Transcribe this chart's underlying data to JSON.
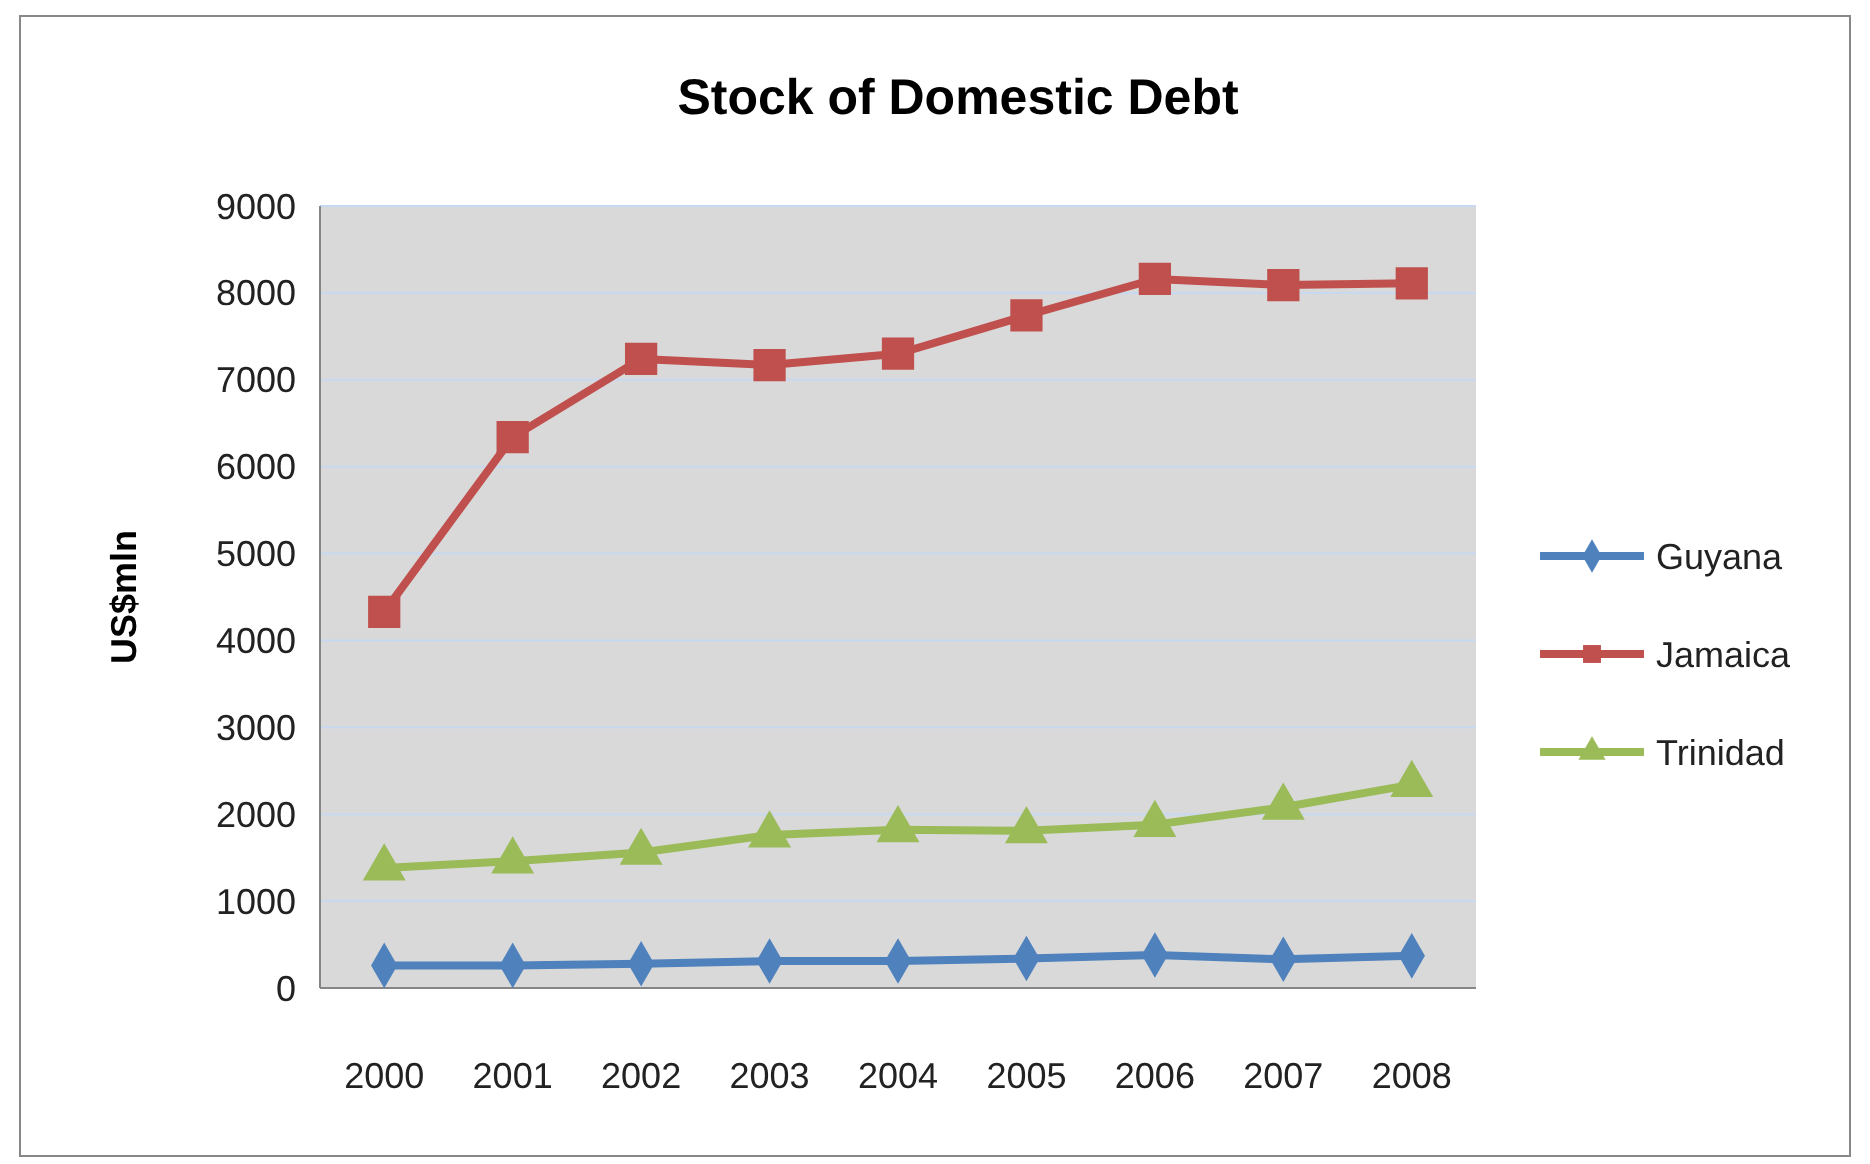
{
  "chart_data": {
    "type": "line",
    "title": "Stock of Domestic Debt",
    "ylabel": "US$mln",
    "categories": [
      "2000",
      "2001",
      "2002",
      "2003",
      "2004",
      "2005",
      "2006",
      "2007",
      "2008"
    ],
    "series": [
      {
        "name": "Guyana",
        "color": "#4f81bd",
        "marker": "diamond",
        "values": [
          260,
          260,
          280,
          310,
          310,
          340,
          380,
          330,
          370
        ]
      },
      {
        "name": "Jamaica",
        "color": "#c0504d",
        "marker": "square",
        "values": [
          4330,
          6340,
          7240,
          7170,
          7300,
          7740,
          8160,
          8090,
          8110
        ]
      },
      {
        "name": "Trinidad",
        "color": "#9bbb59",
        "marker": "triangle",
        "values": [
          1380,
          1460,
          1560,
          1760,
          1820,
          1810,
          1880,
          2080,
          2340
        ]
      }
    ],
    "ylim": [
      0,
      9000
    ],
    "yticks": [
      0,
      1000,
      2000,
      3000,
      4000,
      5000,
      6000,
      7000,
      8000,
      9000
    ],
    "grid": "y",
    "legend": "right"
  }
}
